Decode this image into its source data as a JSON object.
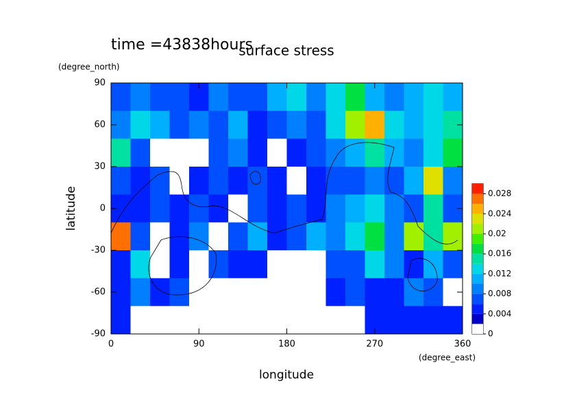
{
  "chart_data": {
    "type": "contour",
    "title": "surface stress",
    "subtitle": "time =43838hours",
    "xlabel": "longitude",
    "xunit": "(degree_east)",
    "ylabel": "latitude",
    "yunit": "(degree_north)",
    "xlim": [
      0,
      360
    ],
    "ylim": [
      -90,
      90
    ],
    "xticks": [
      0,
      90,
      180,
      270,
      360
    ],
    "yticks": [
      90,
      60,
      30,
      0,
      -30,
      -60,
      -90
    ],
    "x": [
      10,
      30,
      50,
      70,
      90,
      110,
      130,
      150,
      170,
      190,
      210,
      230,
      250,
      270,
      290,
      310,
      330,
      350
    ],
    "y": [
      80,
      60,
      40,
      20,
      0,
      -20,
      -40,
      -60,
      -80
    ],
    "z": [
      [
        0.006,
        0.008,
        0.006,
        0.006,
        0.005,
        0.008,
        0.006,
        0.006,
        0.01,
        0.012,
        0.008,
        0.012,
        0.016,
        0.01,
        0.008,
        0.01,
        0.012,
        0.01
      ],
      [
        0.008,
        0.012,
        0.01,
        0.006,
        0.008,
        0.006,
        0.01,
        0.004,
        0.006,
        0.008,
        0.006,
        0.012,
        0.02,
        0.024,
        0.012,
        0.01,
        0.012,
        0.014
      ],
      [
        0.014,
        0.006,
        0.001,
        0.001,
        0.001,
        0.006,
        0.008,
        0.004,
        0.001,
        0.004,
        0.006,
        0.008,
        0.01,
        0.014,
        0.01,
        0.008,
        0.012,
        0.016
      ],
      [
        0.006,
        0.004,
        0.006,
        0.001,
        0.004,
        0.006,
        0.004,
        0.006,
        0.004,
        0.001,
        0.004,
        0.006,
        0.006,
        0.008,
        0.006,
        0.01,
        0.022,
        0.008
      ],
      [
        0.004,
        0.004,
        0.006,
        0.004,
        0.006,
        0.004,
        0.001,
        0.006,
        0.004,
        0.006,
        0.004,
        0.008,
        0.01,
        0.012,
        0.008,
        0.006,
        0.014,
        0.006
      ],
      [
        0.026,
        0.006,
        0.001,
        0.004,
        0.008,
        0.001,
        0.006,
        0.01,
        0.004,
        0.006,
        0.01,
        0.008,
        0.012,
        0.016,
        0.008,
        0.02,
        0.014,
        0.02
      ],
      [
        0.004,
        0.012,
        0.001,
        0.004,
        0.001,
        0.006,
        0.004,
        0.004,
        0.001,
        0.001,
        0.001,
        0.006,
        0.006,
        0.012,
        0.008,
        0.004,
        0.01,
        0.006
      ],
      [
        0.004,
        0.008,
        0.004,
        0.006,
        0.001,
        0.001,
        0.001,
        0.001,
        0.001,
        0.001,
        0.001,
        0.004,
        0.006,
        0.004,
        0.004,
        0.008,
        0.006,
        0.001
      ],
      [
        0.004,
        0.001,
        0.001,
        0.001,
        0.001,
        0.001,
        0.001,
        0.001,
        0.001,
        0.001,
        0.001,
        0.001,
        0.001,
        0.004,
        0.004,
        0.004,
        0.004,
        0.004
      ]
    ],
    "levels": [
      0,
      0.002,
      0.004,
      0.006,
      0.008,
      0.01,
      0.012,
      0.014,
      0.016,
      0.018,
      0.02,
      0.022,
      0.024,
      0.026,
      0.028,
      0.03
    ],
    "colors": [
      "#ffffff",
      "#0000c8",
      "#0020ff",
      "#0050ff",
      "#0080ff",
      "#00b0ff",
      "#00d8e8",
      "#00e0a0",
      "#00e040",
      "#40f000",
      "#a0f000",
      "#e0e000",
      "#ffb000",
      "#ff7000",
      "#ff2000"
    ],
    "clim": [
      0,
      0.03
    ],
    "cticks": [
      0,
      0.004,
      0.008,
      0.012,
      0.016,
      0.02,
      0.024,
      0.028
    ]
  }
}
